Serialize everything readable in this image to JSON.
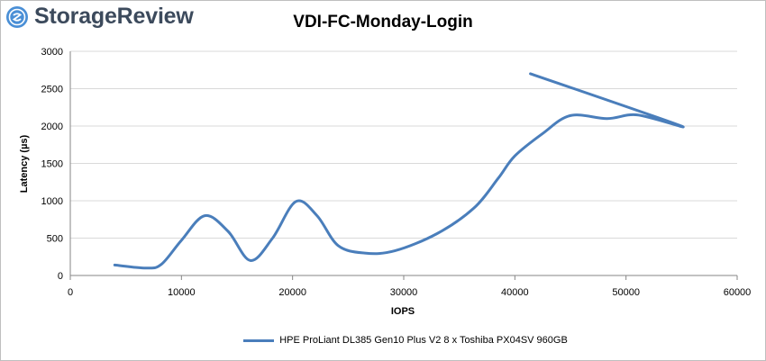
{
  "brand": {
    "name": "StorageReview"
  },
  "colors": {
    "series": "#4a7ebb",
    "grid": "#d9d9d9",
    "axis": "#868686",
    "logo": "#3c4a5c",
    "logo_accent": "#4a8fd6"
  },
  "chart_data": {
    "type": "line",
    "title": "VDI-FC-Monday-Login",
    "xlabel": "IOPS",
    "ylabel": "Latency (µs)",
    "xlim": [
      0,
      60000
    ],
    "ylim": [
      0,
      3000
    ],
    "xticks": [
      0,
      10000,
      20000,
      30000,
      40000,
      50000,
      60000
    ],
    "yticks": [
      0,
      500,
      1000,
      1500,
      2000,
      2500,
      3000
    ],
    "grid": "horizontal",
    "legend_position": "bottom",
    "series": [
      {
        "name": "HPE ProLiant DL385 Gen10 Plus V2 8 x Toshiba PX04SV 960GB",
        "x": [
          4000,
          6800,
          8200,
          10000,
          12100,
          14200,
          16200,
          18200,
          20300,
          22200,
          24100,
          26500,
          29200,
          33000,
          36300,
          38500,
          40000,
          42500,
          45000,
          48300,
          51000,
          54800,
          41400
        ],
        "y": [
          140,
          100,
          150,
          470,
          800,
          590,
          200,
          500,
          990,
          800,
          400,
          300,
          330,
          560,
          900,
          1300,
          1600,
          1900,
          2140,
          2100,
          2150,
          2010,
          2700
        ]
      }
    ]
  }
}
